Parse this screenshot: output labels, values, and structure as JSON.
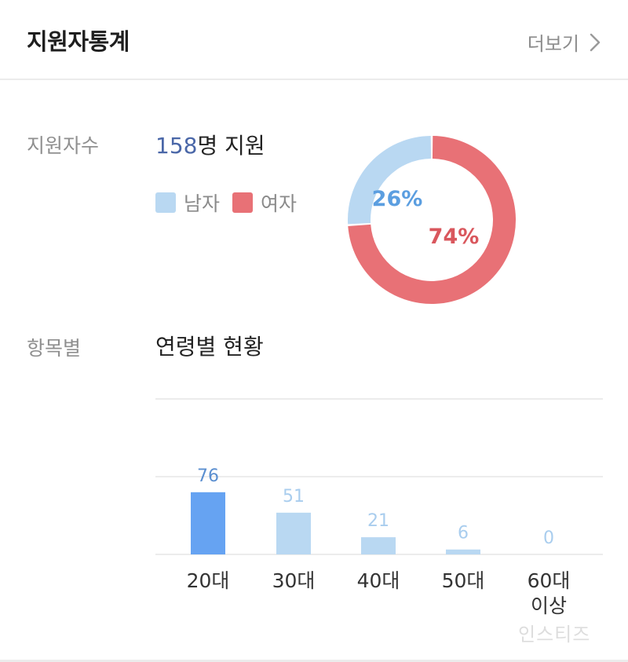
{
  "header": {
    "title": "지원자통계",
    "more_label": "더보기"
  },
  "applicants": {
    "label": "지원자수",
    "count": "158",
    "suffix": "명 지원",
    "legend": [
      {
        "label": "남자",
        "color": "#b9d8f2"
      },
      {
        "label": "여자",
        "color": "#e87176"
      }
    ]
  },
  "by_item": {
    "label": "항목별",
    "section_title": "연령별 현황"
  },
  "watermark": "인스티즈",
  "chart_data": [
    {
      "type": "pie",
      "donut": true,
      "categories": [
        "남자",
        "여자"
      ],
      "values": [
        26,
        74
      ],
      "labels": [
        "26%",
        "74%"
      ],
      "colors": [
        "#b9d8f2",
        "#e87176"
      ],
      "label_colors": [
        "#5b9ee0",
        "#d9575d"
      ]
    },
    {
      "type": "bar",
      "categories": [
        "20대",
        "30대",
        "40대",
        "50대",
        "60대 이상"
      ],
      "values": [
        76,
        51,
        21,
        6,
        0
      ],
      "colors": [
        "#66a3f2",
        "#b9d8f2",
        "#b9d8f2",
        "#b9d8f2",
        "#b9d8f2"
      ],
      "label_colors": [
        "#5b8fd0",
        "#a9cdee",
        "#a9cdee",
        "#a9cdee",
        "#a9cdee"
      ],
      "ylim": [
        0,
        190
      ],
      "grid": true
    }
  ]
}
